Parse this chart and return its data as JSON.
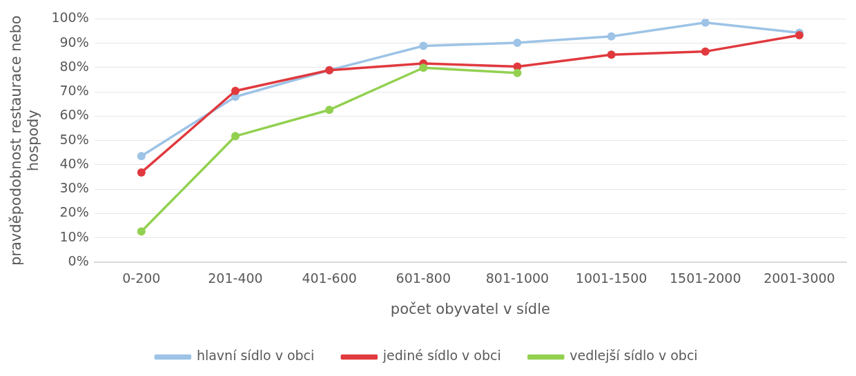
{
  "chart_data": {
    "type": "line",
    "xlabel": "počet obyvatel v sídle",
    "ylabel": "pravděpodobnost restaurace nebo\nhospody",
    "categories": [
      "0-200",
      "201-400",
      "401-600",
      "601-800",
      "801-1000",
      "1001-1500",
      "1501-2000",
      "2001-3000"
    ],
    "series": [
      {
        "name": "hlavní sídlo v obci",
        "color": "#9dc3e6",
        "values": [
          43.6,
          68,
          78.9,
          88.9,
          90.2,
          92.8,
          98.5,
          94.3
        ]
      },
      {
        "name": "jediné sídlo v obci",
        "color": "#e0393e",
        "values": [
          36.9,
          70.4,
          78.9,
          81.7,
          80.4,
          85.3,
          86.6,
          93.3
        ]
      },
      {
        "name": "vedlejší sídlo v obci",
        "color": "#92d050",
        "values": [
          12.6,
          51.8,
          62.6,
          79.9,
          77.8,
          null,
          null,
          null
        ]
      }
    ],
    "ylim": [
      0,
      100
    ],
    "yticks": [
      {
        "value": 0,
        "label": "0%"
      },
      {
        "value": 10,
        "label": "10%"
      },
      {
        "value": 20,
        "label": "20%"
      },
      {
        "value": 30,
        "label": "30%"
      },
      {
        "value": 40,
        "label": "40%"
      },
      {
        "value": 50,
        "label": "50%"
      },
      {
        "value": 60,
        "label": "60%"
      },
      {
        "value": 70,
        "label": "70%"
      },
      {
        "value": 80,
        "label": "80%"
      },
      {
        "value": 90,
        "label": "90%"
      },
      {
        "value": 100,
        "label": "100%"
      }
    ],
    "grid": "y",
    "legend": "bottom",
    "marker": "circle",
    "line_style": "solid"
  }
}
